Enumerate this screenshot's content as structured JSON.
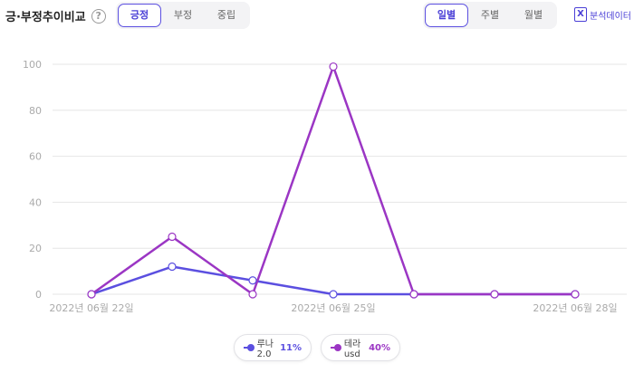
{
  "header": {
    "title": "긍·부정추이비교",
    "help_icon": "?",
    "sentiment_tabs": [
      {
        "label": "긍정",
        "active": true
      },
      {
        "label": "부정",
        "active": false
      },
      {
        "label": "중립",
        "active": false
      }
    ],
    "period_tabs": [
      {
        "label": "일별",
        "active": true
      },
      {
        "label": "주별",
        "active": false
      },
      {
        "label": "월별",
        "active": false
      }
    ],
    "export_label": "분석데이터",
    "export_icon_glyph": "X"
  },
  "chart_data": {
    "type": "line",
    "x": [
      "2022-06-22",
      "2022-06-23",
      "2022-06-24",
      "2022-06-25",
      "2022-06-26",
      "2022-06-27",
      "2022-06-28"
    ],
    "x_tick_labels": [
      "2022년 06월 22일",
      "2022년 06월 25일",
      "2022년 06월 28일"
    ],
    "y_ticks": [
      "0",
      "20",
      "40",
      "60",
      "80",
      "100"
    ],
    "ylim": [
      0,
      100
    ],
    "grid": true,
    "legend_position": "bottom",
    "series": [
      {
        "name": "루나2.0",
        "percent": "11%",
        "color": "#5b4fe0",
        "values": [
          0,
          12,
          6,
          0,
          0,
          0,
          0
        ]
      },
      {
        "name": "테라usd",
        "percent": "40%",
        "color": "#9b36c4",
        "values": [
          0,
          25,
          0,
          99,
          0,
          0,
          0
        ]
      }
    ]
  }
}
